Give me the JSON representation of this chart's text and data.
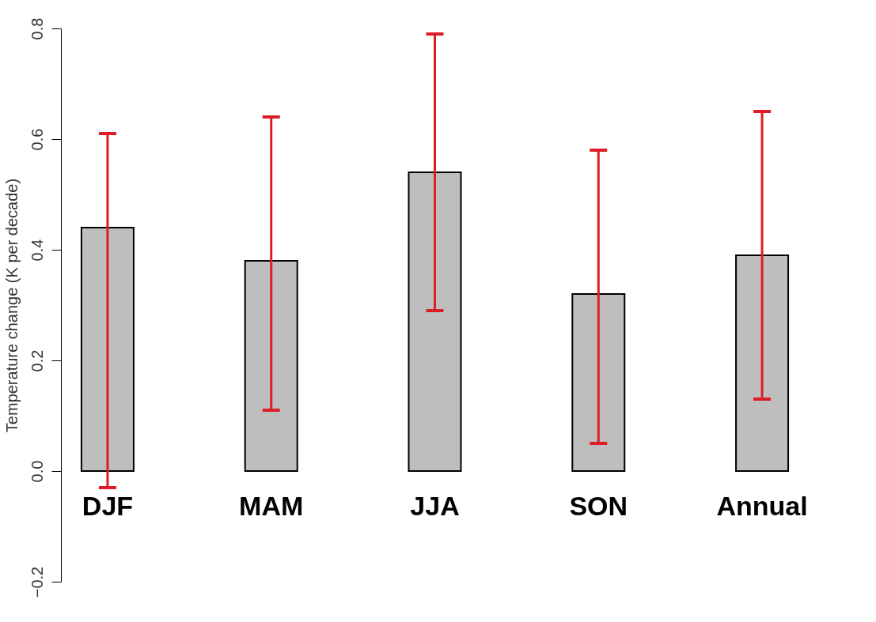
{
  "chart_data": {
    "type": "bar",
    "ylabel": "Temperature change (K per decade)",
    "categories": [
      "DJF",
      "MAM",
      "JJA",
      "SON",
      "Annual"
    ],
    "values": [
      0.44,
      0.38,
      0.54,
      0.32,
      0.39
    ],
    "color": "#bebebe",
    "errors": [
      [
        -0.03,
        0.61
      ],
      [
        0.11,
        0.64
      ],
      [
        0.29,
        0.79
      ],
      [
        0.05,
        0.58
      ],
      [
        0.13,
        0.65
      ]
    ],
    "ylim": [
      -0.2,
      0.8
    ],
    "yticks": [
      {
        "value": -0.2,
        "label": "−0.2"
      },
      {
        "value": 0,
        "label": "0.0"
      },
      0.2,
      0.4,
      0.6,
      0.8
    ],
    "grid": false
  }
}
